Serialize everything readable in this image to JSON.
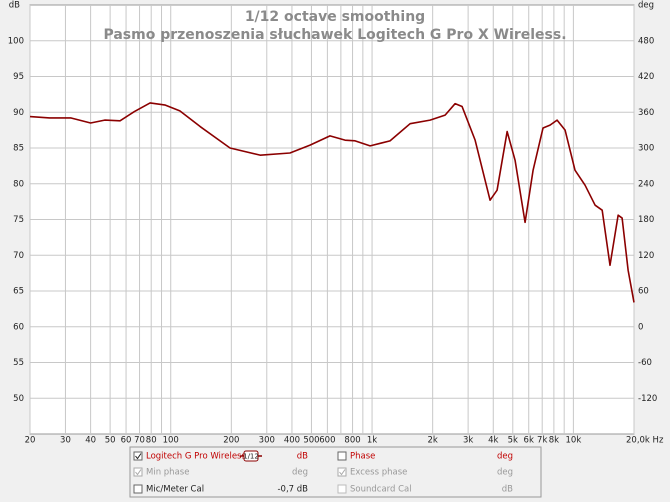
{
  "chart_data": {
    "type": "line",
    "title": "1/12 octave smoothing",
    "subtitle": "Pasmo przenoszenia słuchawek Logitech G Pro X Wireless.",
    "y_label": "dB",
    "y2_label": "deg",
    "log_x": true,
    "grid": true,
    "xlim": [
      20,
      20000
    ],
    "xticks": [
      20,
      30,
      40,
      50,
      60,
      70,
      80,
      100,
      200,
      300,
      400,
      500,
      600,
      800,
      {
        "value": 1000,
        "label": "1k"
      },
      {
        "value": 2000,
        "label": "2k"
      },
      {
        "value": 3000,
        "label": "3k"
      },
      {
        "value": 4000,
        "label": "4k"
      },
      {
        "value": 5000,
        "label": "5k"
      },
      {
        "value": 6000,
        "label": "6k"
      },
      {
        "value": 7000,
        "label": "7k"
      },
      {
        "value": 8000,
        "label": "8k"
      },
      {
        "value": 10000,
        "label": "10k"
      },
      {
        "value": 20000,
        "label": "20,0k Hz"
      }
    ],
    "xgrid_minor": [
      90,
      700,
      900,
      9000
    ],
    "ylim": [
      45,
      105
    ],
    "yticks": [
      50,
      55,
      60,
      65,
      70,
      75,
      80,
      85,
      90,
      95,
      100
    ],
    "y2lim": [
      -180,
      540
    ],
    "y2ticks": [
      -120,
      -60,
      0,
      60,
      120,
      180,
      240,
      300,
      360,
      420,
      480
    ],
    "x": [
      20,
      25,
      32,
      40,
      47,
      56,
      66,
      79,
      94,
      111,
      140,
      197,
      278,
      391,
      492,
      618,
      734,
      824,
      978,
      1228,
      1545,
      1942,
      2306,
      2584,
      2800,
      3250,
      3856,
      4178,
      4688,
      5132,
      5754,
      6308,
      7066,
      7656,
      8298,
      9096,
      10186,
      11428,
      12820,
      13900,
      15200,
      16680,
      17460,
      18700,
      20000
    ],
    "series": [
      {
        "name": "Logitech G Pro Wireless",
        "color": "#8b0000",
        "values": [
          89.4,
          89.2,
          89.2,
          88.5,
          88.9,
          88.8,
          90.1,
          91.3,
          91.0,
          90.2,
          88.0,
          85.0,
          84.0,
          84.3,
          85.4,
          86.7,
          86.1,
          86.0,
          85.3,
          86.0,
          88.4,
          88.9,
          89.6,
          91.2,
          90.8,
          86.1,
          77.7,
          79.1,
          87.3,
          83.3,
          74.6,
          81.9,
          87.8,
          88.2,
          88.9,
          87.5,
          81.9,
          79.8,
          77.0,
          76.3,
          68.6,
          75.6,
          75.2,
          67.9,
          63.4
        ]
      }
    ]
  },
  "legend_panel": {
    "smoothing": "1/12",
    "rows": [
      {
        "unit": "dB",
        "right": "Phase",
        "right_unit": "deg"
      },
      {
        "left": "Min phase",
        "unit": "deg",
        "right": "Excess phase",
        "right_unit": "deg"
      },
      {
        "left": "Mic/Meter Cal",
        "unit": "-0,7 dB",
        "right": "Soundcard Cal",
        "right_unit": "dB"
      }
    ]
  }
}
